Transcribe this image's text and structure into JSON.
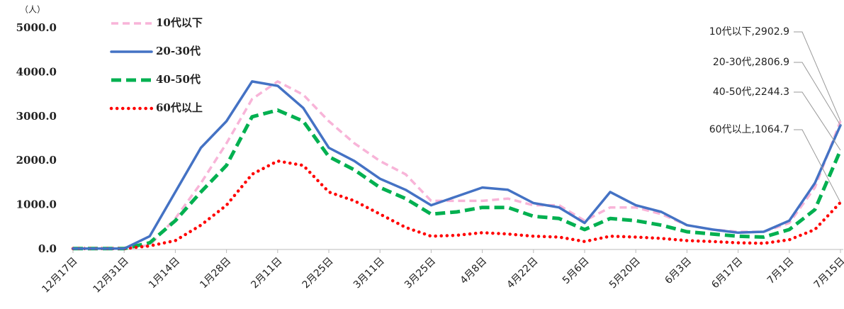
{
  "chart_data": {
    "type": "line",
    "unit": "（人）",
    "categories": [
      "12月17日",
      null,
      "12月31日",
      null,
      "1月14日",
      null,
      "1月28日",
      null,
      "2月11日",
      null,
      "2月25日",
      null,
      "3月11日",
      null,
      "3月25日",
      null,
      "4月8日",
      null,
      "4月22日",
      null,
      "5月6日",
      null,
      "5月20日",
      null,
      "6月3日",
      null,
      "6月17日",
      null,
      "7月1日",
      null,
      "7月15日"
    ],
    "series": [
      {
        "name": "10代以下",
        "color": "#f8b4d8",
        "dash": "dash",
        "values": [
          20,
          20,
          20,
          100,
          700,
          1500,
          2400,
          3400,
          3800,
          3500,
          2900,
          2400,
          2000,
          1700,
          1100,
          1100,
          1100,
          1150,
          1000,
          1000,
          650,
          950,
          950,
          800,
          550,
          450,
          400,
          400,
          600,
          1400,
          2902.9
        ]
      },
      {
        "name": "20-30代",
        "color": "#4472c4",
        "dash": "solid",
        "values": [
          20,
          20,
          20,
          300,
          1300,
          2300,
          2900,
          3800,
          3700,
          3200,
          2300,
          2000,
          1600,
          1350,
          1000,
          1200,
          1400,
          1350,
          1050,
          950,
          600,
          1300,
          1000,
          850,
          550,
          450,
          380,
          400,
          650,
          1500,
          2806.9
        ]
      },
      {
        "name": "40-50代",
        "color": "#00b050",
        "dash": "bigdash",
        "values": [
          20,
          20,
          20,
          150,
          650,
          1300,
          1900,
          3000,
          3150,
          2900,
          2100,
          1800,
          1400,
          1150,
          800,
          850,
          950,
          950,
          750,
          700,
          450,
          700,
          650,
          550,
          400,
          350,
          300,
          280,
          450,
          900,
          2244.3
        ]
      },
      {
        "name": "60代以上",
        "color": "#ff0000",
        "dash": "dot",
        "values": [
          20,
          20,
          20,
          80,
          200,
          550,
          1000,
          1700,
          2000,
          1900,
          1300,
          1100,
          800,
          500,
          300,
          320,
          380,
          350,
          300,
          280,
          180,
          300,
          280,
          250,
          200,
          180,
          150,
          140,
          220,
          450,
          1064.7
        ]
      }
    ],
    "annotations": [
      "10代以下,2902.9",
      "20-30代,2806.9",
      "40-50代,2244.3",
      "60代以上,1064.7"
    ],
    "ylim": [
      0,
      5000
    ],
    "yticks": [
      {
        "value": 0,
        "label": "0.0"
      },
      {
        "value": 1000,
        "label": "1000.0"
      },
      {
        "value": 2000,
        "label": "2000.0"
      },
      {
        "value": 3000,
        "label": "3000.0"
      },
      {
        "value": 4000,
        "label": "4000.0"
      },
      {
        "value": 5000,
        "label": "5000.0"
      }
    ],
    "grid": false
  }
}
